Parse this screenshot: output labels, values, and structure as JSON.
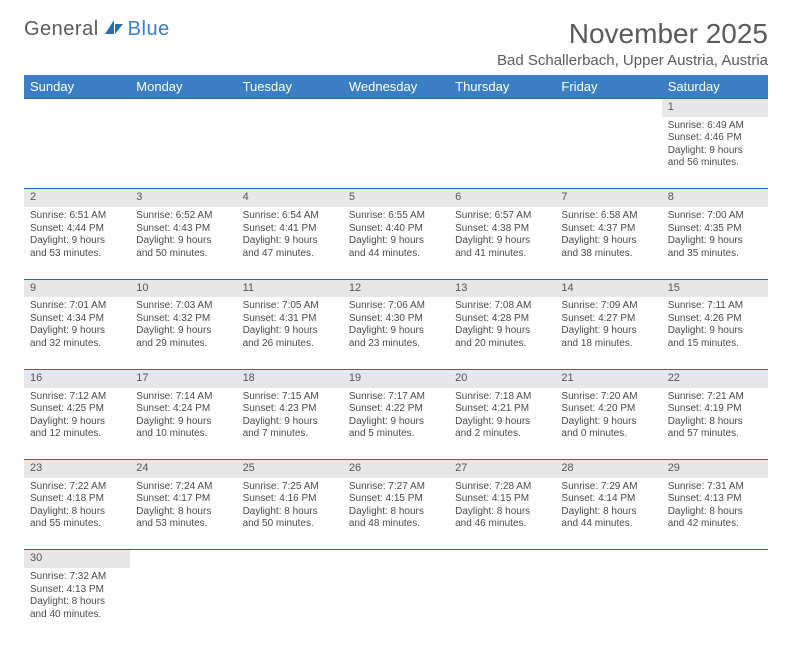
{
  "logo": {
    "text1": "General",
    "text2": "Blue"
  },
  "title": "November 2025",
  "location": "Bad Schallerbach, Upper Austria, Austria",
  "colors": {
    "header_bg": "#3a7fc4",
    "header_text": "#ffffff",
    "daynum_bg": "#e7e7e7",
    "week_border": "#2d6bb0",
    "body_text": "#4a4a4a",
    "title_text": "#5a5a5a"
  },
  "day_headers": [
    "Sunday",
    "Monday",
    "Tuesday",
    "Wednesday",
    "Thursday",
    "Friday",
    "Saturday"
  ],
  "weeks": [
    {
      "daynums": [
        "",
        "",
        "",
        "",
        "",
        "",
        "1"
      ],
      "cells": [
        null,
        null,
        null,
        null,
        null,
        null,
        {
          "sunrise": "Sunrise: 6:49 AM",
          "sunset": "Sunset: 4:46 PM",
          "day1": "Daylight: 9 hours",
          "day2": "and 56 minutes."
        }
      ]
    },
    {
      "daynums": [
        "2",
        "3",
        "4",
        "5",
        "6",
        "7",
        "8"
      ],
      "cells": [
        {
          "sunrise": "Sunrise: 6:51 AM",
          "sunset": "Sunset: 4:44 PM",
          "day1": "Daylight: 9 hours",
          "day2": "and 53 minutes."
        },
        {
          "sunrise": "Sunrise: 6:52 AM",
          "sunset": "Sunset: 4:43 PM",
          "day1": "Daylight: 9 hours",
          "day2": "and 50 minutes."
        },
        {
          "sunrise": "Sunrise: 6:54 AM",
          "sunset": "Sunset: 4:41 PM",
          "day1": "Daylight: 9 hours",
          "day2": "and 47 minutes."
        },
        {
          "sunrise": "Sunrise: 6:55 AM",
          "sunset": "Sunset: 4:40 PM",
          "day1": "Daylight: 9 hours",
          "day2": "and 44 minutes."
        },
        {
          "sunrise": "Sunrise: 6:57 AM",
          "sunset": "Sunset: 4:38 PM",
          "day1": "Daylight: 9 hours",
          "day2": "and 41 minutes."
        },
        {
          "sunrise": "Sunrise: 6:58 AM",
          "sunset": "Sunset: 4:37 PM",
          "day1": "Daylight: 9 hours",
          "day2": "and 38 minutes."
        },
        {
          "sunrise": "Sunrise: 7:00 AM",
          "sunset": "Sunset: 4:35 PM",
          "day1": "Daylight: 9 hours",
          "day2": "and 35 minutes."
        }
      ]
    },
    {
      "daynums": [
        "9",
        "10",
        "11",
        "12",
        "13",
        "14",
        "15"
      ],
      "cells": [
        {
          "sunrise": "Sunrise: 7:01 AM",
          "sunset": "Sunset: 4:34 PM",
          "day1": "Daylight: 9 hours",
          "day2": "and 32 minutes."
        },
        {
          "sunrise": "Sunrise: 7:03 AM",
          "sunset": "Sunset: 4:32 PM",
          "day1": "Daylight: 9 hours",
          "day2": "and 29 minutes."
        },
        {
          "sunrise": "Sunrise: 7:05 AM",
          "sunset": "Sunset: 4:31 PM",
          "day1": "Daylight: 9 hours",
          "day2": "and 26 minutes."
        },
        {
          "sunrise": "Sunrise: 7:06 AM",
          "sunset": "Sunset: 4:30 PM",
          "day1": "Daylight: 9 hours",
          "day2": "and 23 minutes."
        },
        {
          "sunrise": "Sunrise: 7:08 AM",
          "sunset": "Sunset: 4:28 PM",
          "day1": "Daylight: 9 hours",
          "day2": "and 20 minutes."
        },
        {
          "sunrise": "Sunrise: 7:09 AM",
          "sunset": "Sunset: 4:27 PM",
          "day1": "Daylight: 9 hours",
          "day2": "and 18 minutes."
        },
        {
          "sunrise": "Sunrise: 7:11 AM",
          "sunset": "Sunset: 4:26 PM",
          "day1": "Daylight: 9 hours",
          "day2": "and 15 minutes."
        }
      ]
    },
    {
      "daynums": [
        "16",
        "17",
        "18",
        "19",
        "20",
        "21",
        "22"
      ],
      "cells": [
        {
          "sunrise": "Sunrise: 7:12 AM",
          "sunset": "Sunset: 4:25 PM",
          "day1": "Daylight: 9 hours",
          "day2": "and 12 minutes."
        },
        {
          "sunrise": "Sunrise: 7:14 AM",
          "sunset": "Sunset: 4:24 PM",
          "day1": "Daylight: 9 hours",
          "day2": "and 10 minutes."
        },
        {
          "sunrise": "Sunrise: 7:15 AM",
          "sunset": "Sunset: 4:23 PM",
          "day1": "Daylight: 9 hours",
          "day2": "and 7 minutes."
        },
        {
          "sunrise": "Sunrise: 7:17 AM",
          "sunset": "Sunset: 4:22 PM",
          "day1": "Daylight: 9 hours",
          "day2": "and 5 minutes."
        },
        {
          "sunrise": "Sunrise: 7:18 AM",
          "sunset": "Sunset: 4:21 PM",
          "day1": "Daylight: 9 hours",
          "day2": "and 2 minutes."
        },
        {
          "sunrise": "Sunrise: 7:20 AM",
          "sunset": "Sunset: 4:20 PM",
          "day1": "Daylight: 9 hours",
          "day2": "and 0 minutes."
        },
        {
          "sunrise": "Sunrise: 7:21 AM",
          "sunset": "Sunset: 4:19 PM",
          "day1": "Daylight: 8 hours",
          "day2": "and 57 minutes."
        }
      ]
    },
    {
      "daynums": [
        "23",
        "24",
        "25",
        "26",
        "27",
        "28",
        "29"
      ],
      "cells": [
        {
          "sunrise": "Sunrise: 7:22 AM",
          "sunset": "Sunset: 4:18 PM",
          "day1": "Daylight: 8 hours",
          "day2": "and 55 minutes."
        },
        {
          "sunrise": "Sunrise: 7:24 AM",
          "sunset": "Sunset: 4:17 PM",
          "day1": "Daylight: 8 hours",
          "day2": "and 53 minutes."
        },
        {
          "sunrise": "Sunrise: 7:25 AM",
          "sunset": "Sunset: 4:16 PM",
          "day1": "Daylight: 8 hours",
          "day2": "and 50 minutes."
        },
        {
          "sunrise": "Sunrise: 7:27 AM",
          "sunset": "Sunset: 4:15 PM",
          "day1": "Daylight: 8 hours",
          "day2": "and 48 minutes."
        },
        {
          "sunrise": "Sunrise: 7:28 AM",
          "sunset": "Sunset: 4:15 PM",
          "day1": "Daylight: 8 hours",
          "day2": "and 46 minutes."
        },
        {
          "sunrise": "Sunrise: 7:29 AM",
          "sunset": "Sunset: 4:14 PM",
          "day1": "Daylight: 8 hours",
          "day2": "and 44 minutes."
        },
        {
          "sunrise": "Sunrise: 7:31 AM",
          "sunset": "Sunset: 4:13 PM",
          "day1": "Daylight: 8 hours",
          "day2": "and 42 minutes."
        }
      ]
    },
    {
      "daynums": [
        "30",
        "",
        "",
        "",
        "",
        "",
        ""
      ],
      "cells": [
        {
          "sunrise": "Sunrise: 7:32 AM",
          "sunset": "Sunset: 4:13 PM",
          "day1": "Daylight: 8 hours",
          "day2": "and 40 minutes."
        },
        null,
        null,
        null,
        null,
        null,
        null
      ]
    }
  ]
}
